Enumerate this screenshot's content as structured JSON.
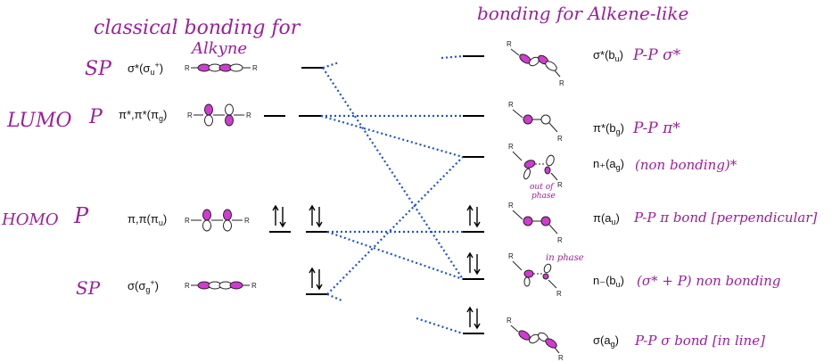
{
  "handwriting": {
    "left_title_line1": "classical bonding for",
    "left_title_line2": "Alkyne",
    "right_title": "bonding for Alkene-like",
    "row_sp1": "SP",
    "row_p1": "P",
    "lumo": "LUMO",
    "homo": "HOMO",
    "row_p2": "P",
    "row_sp2": "SP",
    "right_sigma_star": "P-P σ*",
    "right_pi_star": "P-P π*",
    "right_nonbond": "(non bonding)*",
    "out_of_phase_1": "out of",
    "out_of_phase_2": "phase",
    "in_phase": "in phase",
    "right_pi": "P-P π bond [perpendicular]",
    "right_nb": "(σ* + P) non bonding",
    "right_sigma": "P-P σ bond [in line]"
  },
  "left_levels": [
    {
      "main": "σ*(σ",
      "sub": "u",
      "sup": "+",
      "close": ")"
    },
    {
      "main": "π*,π*(π",
      "sub": "g",
      "sup": "",
      "close": ")"
    },
    {
      "main": "π,π(π",
      "sub": "u",
      "sup": "",
      "close": ")"
    },
    {
      "main": "σ(σ",
      "sub": "g",
      "sup": "+",
      "close": ")"
    }
  ],
  "right_levels": [
    {
      "main": "σ*(b",
      "sub": "u",
      "close": ")"
    },
    {
      "main": "π*(b",
      "sub": "g",
      "close": ")"
    },
    {
      "main": "n₊(a",
      "sub": "g",
      "close": ")"
    },
    {
      "main": "π(a",
      "sub": "u",
      "close": ")"
    },
    {
      "main": "n₋(b",
      "sub": "u",
      "close": ")"
    },
    {
      "main": "σ(a",
      "sub": "g",
      "close": ")"
    }
  ],
  "substituent": "R",
  "colors": {
    "ink": "#9b1f9b",
    "correlation": "#1f4fd6",
    "lobe": "#d23ad2"
  }
}
